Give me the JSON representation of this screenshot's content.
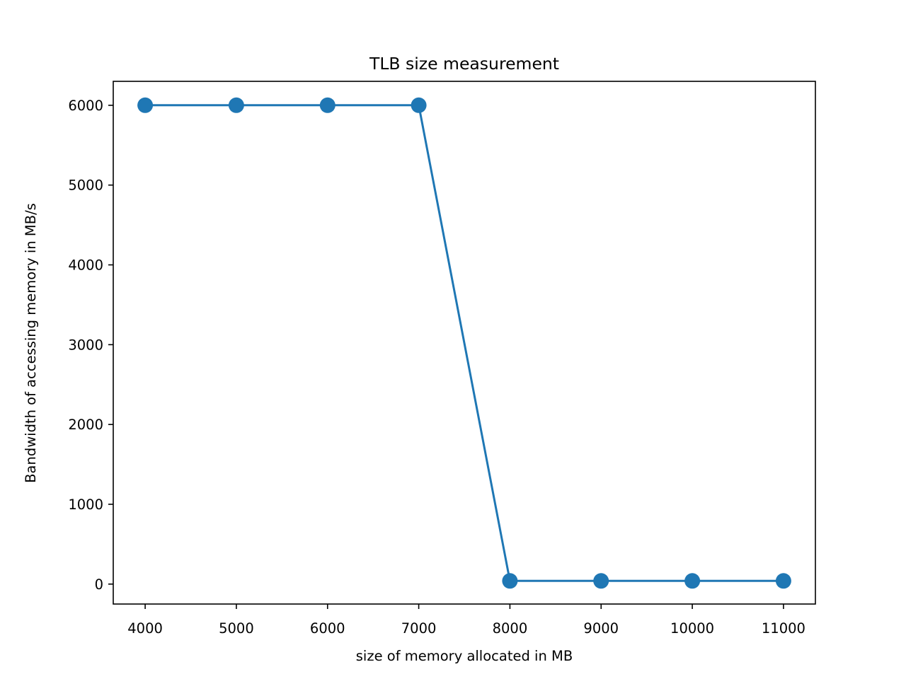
{
  "chart_data": {
    "type": "line",
    "title": "TLB size measurement",
    "xlabel": "size of memory allocated in MB",
    "ylabel": "Bandwidth of accessing memory in MB/s",
    "x": [
      4000,
      5000,
      6000,
      7000,
      8000,
      9000,
      10000,
      11000
    ],
    "series": [
      {
        "values": [
          6000,
          6000,
          6000,
          6000,
          40,
          40,
          40,
          40
        ],
        "color": "#1f77b4",
        "marker": "circle"
      }
    ],
    "xlim": [
      3650,
      11350
    ],
    "ylim": [
      -250,
      6300
    ],
    "xticks": [
      4000,
      5000,
      6000,
      7000,
      8000,
      9000,
      10000,
      11000
    ],
    "yticks": [
      0,
      1000,
      2000,
      3000,
      4000,
      5000,
      6000
    ],
    "grid": false,
    "legend": "none"
  }
}
